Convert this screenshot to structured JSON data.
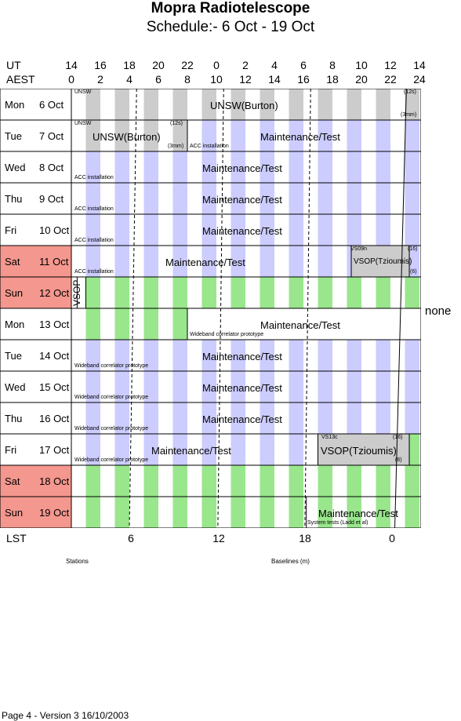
{
  "title": "Mopra Radiotelescope",
  "subtitle": "Schedule:- 6  Oct - 19 Oct",
  "ut_label": "UT",
  "aest_label": "AEST",
  "ut_ticks": [
    "14",
    "16",
    "18",
    "20",
    "22",
    "0",
    "2",
    "4",
    "6",
    "8",
    "10",
    "12",
    "14"
  ],
  "aest_ticks": [
    "0",
    "2",
    "4",
    "6",
    "8",
    "10",
    "12",
    "14",
    "16",
    "18",
    "20",
    "22",
    "24"
  ],
  "days": [
    {
      "day": "Mon",
      "date": "6  Oct",
      "weekend": false
    },
    {
      "day": "Tue",
      "date": "7  Oct",
      "weekend": false
    },
    {
      "day": "Wed",
      "date": "8  Oct",
      "weekend": false
    },
    {
      "day": "Thu",
      "date": "9  Oct",
      "weekend": false
    },
    {
      "day": "Fri",
      "date": "10 Oct",
      "weekend": false
    },
    {
      "day": "Sat",
      "date": "11 Oct",
      "weekend": true
    },
    {
      "day": "Sun",
      "date": "12 Oct",
      "weekend": true
    },
    {
      "day": "Mon",
      "date": "13 Oct",
      "weekend": false
    },
    {
      "day": "Tue",
      "date": "14 Oct",
      "weekend": false
    },
    {
      "day": "Wed",
      "date": "15 Oct",
      "weekend": false
    },
    {
      "day": "Thu",
      "date": "16 Oct",
      "weekend": false
    },
    {
      "day": "Fri",
      "date": "17 Oct",
      "weekend": false
    },
    {
      "day": "Sat",
      "date": "18 Oct",
      "weekend": true
    },
    {
      "day": "Sun",
      "date": "19 Oct",
      "weekend": true
    }
  ],
  "blocks": {
    "mon6": {
      "label": "UNSW(Burton)",
      "tag_left": "UNSW",
      "tag_right": "(12s)",
      "note": "(3mm)"
    },
    "tue7a": {
      "label": "UNSW(Burton)",
      "tag_left": "UNSW",
      "tag_right": "(12s)",
      "note": "(3mm)"
    },
    "tue7b": {
      "label": "Maintenance/Test",
      "note": "ACC installation"
    },
    "wed8": {
      "label": "Maintenance/Test",
      "note": "ACC installation"
    },
    "thu9": {
      "label": "Maintenance/Test",
      "note": "ACC installation"
    },
    "fri10": {
      "label": "Maintenance/Test",
      "note": "ACC installation"
    },
    "sat11a": {
      "label": "Maintenance/Test",
      "note": "ACC installation"
    },
    "sat11b": {
      "label": "VSOP(Tzioumis)",
      "tag_left": "VS09n",
      "tag_right": "(16)",
      "note": "(6)"
    },
    "sun12": {
      "label": "VSOP"
    },
    "mon13": {
      "label": "Maintenance/Test",
      "note": "Wideband correlator prototype"
    },
    "tue14": {
      "label": "Maintenance/Test",
      "note": "Wideband correlator prototype"
    },
    "wed15": {
      "label": "Maintenance/Test",
      "note": "Wideband correlator prototype"
    },
    "thu16": {
      "label": "Maintenance/Test",
      "note": "Wideband correlator prototype"
    },
    "fri17a": {
      "label": "Maintenance/Test",
      "note": "Wideband correlator prototype"
    },
    "fri17b": {
      "label": "VSOP(Tzioumis)",
      "tag_left": "VS13c",
      "tag_right": "(16)",
      "note": "(6)"
    },
    "sun19": {
      "label": "Maintenance/Test",
      "note": "System tests (Ladd et al)"
    }
  },
  "side_note": "none",
  "lst_label": "LST",
  "lst_ticks": [
    "6",
    "12",
    "18",
    "0"
  ],
  "stations_label": "Stations",
  "baselines_label": "Baselines (m)",
  "footer": "Page 4 - Version 3  16/10/2003",
  "colors": {
    "weekend": "#f4978e",
    "blue": "#ccccff",
    "green": "#99e68c",
    "grey": "#cccccc"
  }
}
